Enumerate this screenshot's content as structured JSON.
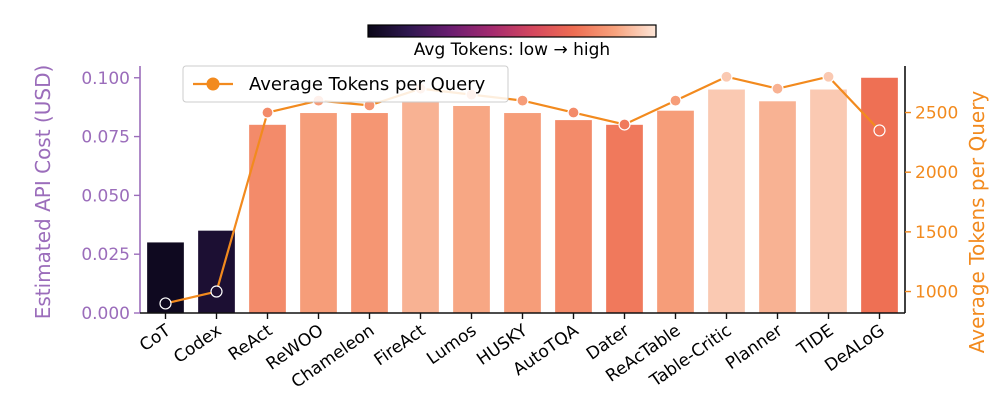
{
  "chart_data": {
    "type": "bar",
    "categories": [
      "CoT",
      "Codex",
      "ReAct",
      "ReWOO",
      "Chameleon",
      "FireAct",
      "Lumos",
      "HUSKY",
      "AutoTQA",
      "Dater",
      "ReAcTable",
      "Table-Critic",
      "Planner",
      "TIDE",
      "DeALoG"
    ],
    "series": [
      {
        "axis": "left",
        "values": [
          0.03,
          0.035,
          0.08,
          0.085,
          0.085,
          0.09,
          0.088,
          0.085,
          0.082,
          0.08,
          0.086,
          0.095,
          0.09,
          0.095,
          0.1
        ]
      },
      {
        "name": "Average Tokens per Query",
        "axis": "right",
        "type": "line",
        "values": [
          900,
          1000,
          2500,
          2600,
          2560,
          2700,
          2650,
          2600,
          2500,
          2400,
          2600,
          2800,
          2700,
          2800,
          2350
        ]
      }
    ],
    "ylabel": "Estimated API Cost (USD)",
    "ylabel_right": "Average Tokens per Query",
    "ylim": [
      0,
      0.105
    ],
    "ylim_right": [
      820,
      2890
    ],
    "yticks": [
      "0.000",
      "0.025",
      "0.050",
      "0.075",
      "0.100"
    ],
    "yticks_right": [
      "1000",
      "1500",
      "2000",
      "2500"
    ],
    "colorbar_label": "Avg Tokens: low → high",
    "legend_position": "top-left",
    "grid": false,
    "colors": {
      "left_axis": "#9b6dbb",
      "right_axis": "#f28a1e",
      "line": "#f28a1e",
      "marker_edge": "#ffffff",
      "colormap": [
        "#0a0718",
        "#2f1850",
        "#6a1d70",
        "#a32a6f",
        "#d4475e",
        "#ee6d52",
        "#f7a27d",
        "#fde6d8"
      ]
    }
  }
}
